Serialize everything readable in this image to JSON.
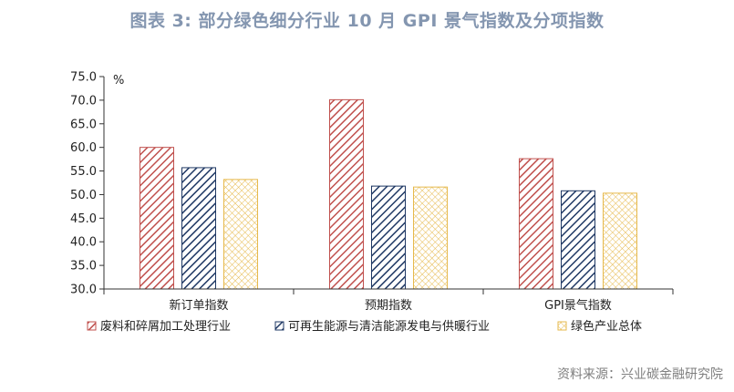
{
  "title": "图表 3:   部分绿色细分行业 10 月 GPI 景气指数及分项指数",
  "source": "资料来源：兴业碳金融研究院",
  "chart_data": {
    "type": "bar",
    "categories": [
      "新订单指数",
      "预期指数",
      "GPI景气指数"
    ],
    "series": [
      {
        "name": "废料和碎屑加工处理行业",
        "values": [
          60.0,
          70.1,
          57.6
        ],
        "color": "#c0504d",
        "pattern": "diagonal"
      },
      {
        "name": "可再生能源与清洁能源发电与供暖行业",
        "values": [
          55.7,
          51.8,
          50.8
        ],
        "color": "#1f3864",
        "pattern": "diagonal"
      },
      {
        "name": "绿色产业总体",
        "values": [
          53.2,
          51.6,
          50.3
        ],
        "color": "#e6b94c",
        "pattern": "grid"
      }
    ],
    "unit": "%",
    "ylim": [
      30.0,
      75.0
    ],
    "yticks": [
      "30.0",
      "35.0",
      "40.0",
      "45.0",
      "50.0",
      "55.0",
      "60.0",
      "65.0",
      "70.0",
      "75.0"
    ],
    "grid": false,
    "legend": "bottom"
  }
}
